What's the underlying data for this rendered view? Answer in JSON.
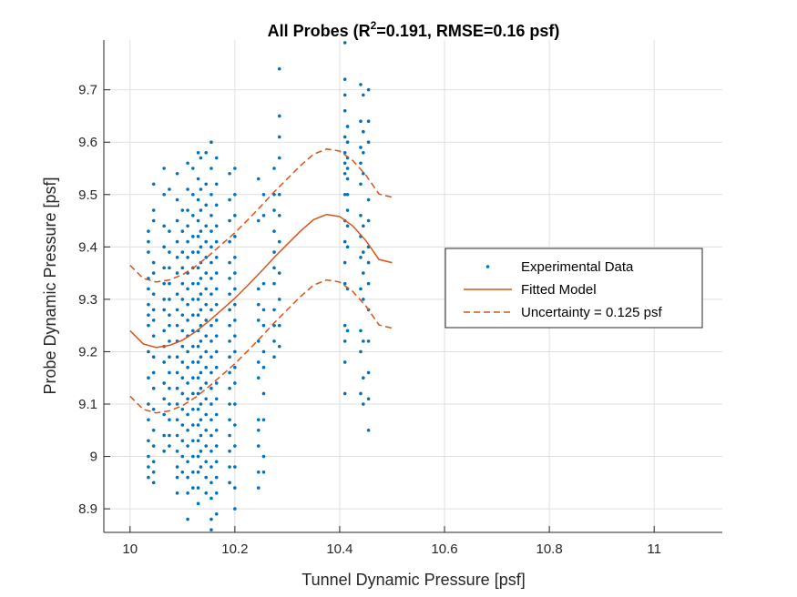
{
  "chart_data": {
    "type": "scatter",
    "title": {
      "prefix": "All Probes (R",
      "superscript": "2",
      "suffix": "=0.191, RMSE=0.16 psf)"
    },
    "xlabel": "Tunnel Dynamic Pressure [psf]",
    "ylabel": "Probe Dynamic Pressure [psf]",
    "xlim": [
      9.95,
      11.13
    ],
    "ylim": [
      8.855,
      9.795
    ],
    "xticks": [
      10,
      10.2,
      10.4,
      10.6,
      10.8,
      11
    ],
    "xtick_labels": [
      "10",
      "10.2",
      "10.4",
      "10.6",
      "10.8",
      "11"
    ],
    "yticks": [
      8.9,
      9,
      9.1,
      9.2,
      9.3,
      9.4,
      9.5,
      9.6,
      9.7
    ],
    "ytick_labels": [
      "8.9",
      "9",
      "9.1",
      "9.2",
      "9.3",
      "9.4",
      "9.5",
      "9.6",
      "9.7"
    ],
    "grid": true,
    "legend_position": "right",
    "colors": {
      "data": "#0072bd",
      "model": "#d95319",
      "axis": "#262626",
      "grid": "#dfdfdf"
    },
    "legend": [
      {
        "label": "Experimental Data",
        "style": "dot"
      },
      {
        "label": "Fitted Model",
        "style": "solid"
      },
      {
        "label": "Uncertainty = 0.125 psf",
        "style": "dashed"
      }
    ],
    "fitted_model": {
      "x": [
        10.0,
        10.025,
        10.05,
        10.075,
        10.1,
        10.125,
        10.15,
        10.175,
        10.2,
        10.225,
        10.25,
        10.275,
        10.3,
        10.325,
        10.35,
        10.375,
        10.4,
        10.425,
        10.45,
        10.475,
        10.5
      ],
      "y": [
        9.24,
        9.215,
        9.208,
        9.212,
        9.222,
        9.238,
        9.258,
        9.28,
        9.302,
        9.327,
        9.353,
        9.38,
        9.405,
        9.43,
        9.452,
        9.462,
        9.458,
        9.44,
        9.412,
        9.376,
        9.37
      ],
      "uncertainty": 0.125
    },
    "experimental_data": {
      "clusters": [
        {
          "x": 10.035,
          "y": [
            9.43,
            9.41,
            9.39,
            9.34,
            9.32,
            9.29,
            9.27,
            9.25,
            9.2,
            9.15,
            9.1,
            9.07,
            9.03,
            9.0,
            8.98,
            8.96
          ]
        },
        {
          "x": 10.045,
          "y": [
            9.52,
            9.47,
            9.45,
            9.37,
            9.35,
            9.31,
            9.28,
            9.26,
            9.23,
            9.19,
            9.16,
            9.13,
            9.09,
            9.05,
            9.02,
            8.99,
            8.97,
            8.95
          ]
        },
        {
          "x": 10.065,
          "y": [
            9.55,
            9.5,
            9.44,
            9.4,
            9.36,
            9.33,
            9.3,
            9.28,
            9.24,
            9.21,
            9.18,
            9.14,
            9.11,
            9.08,
            9.04,
            9.01
          ]
        },
        {
          "x": 10.075,
          "y": [
            9.51,
            9.43,
            9.39,
            9.36,
            9.33,
            9.3,
            9.27,
            9.25,
            9.22,
            9.19,
            9.16,
            9.13,
            9.1,
            9.07,
            9.04,
            9.02
          ]
        },
        {
          "x": 10.09,
          "y": [
            9.54,
            9.49,
            9.45,
            9.41,
            9.38,
            9.35,
            9.31,
            9.28,
            9.25,
            9.22,
            9.19,
            9.16,
            9.13,
            9.1,
            9.07,
            9.04,
            9.01,
            8.98,
            8.96,
            8.93
          ]
        },
        {
          "x": 10.1,
          "y": [
            9.47,
            9.43,
            9.39,
            9.36,
            9.33,
            9.3,
            9.27,
            9.24,
            9.21,
            9.18,
            9.15,
            9.12,
            9.09,
            9.06,
            9.03,
            9.0,
            8.97
          ]
        },
        {
          "x": 10.11,
          "y": [
            9.56,
            9.51,
            9.47,
            9.44,
            9.41,
            9.38,
            9.35,
            9.32,
            9.29,
            9.26,
            9.23,
            9.2,
            9.17,
            9.14,
            9.11,
            9.08,
            9.05,
            9.02,
            8.99,
            8.96,
            8.93,
            8.88
          ]
        },
        {
          "x": 10.12,
          "y": [
            9.55,
            9.5,
            9.46,
            9.42,
            9.39,
            9.36,
            9.33,
            9.3,
            9.27,
            9.24,
            9.21,
            9.18,
            9.15,
            9.12,
            9.09,
            9.06,
            9.03,
            9.0,
            8.97,
            8.94
          ]
        },
        {
          "x": 10.13,
          "y": [
            9.58,
            9.53,
            9.49,
            9.45,
            9.42,
            9.39,
            9.36,
            9.33,
            9.3,
            9.27,
            9.24,
            9.21,
            9.18,
            9.15,
            9.12,
            9.09,
            9.06,
            9.03,
            9.0,
            8.97,
            8.94,
            8.91
          ]
        },
        {
          "x": 10.135,
          "y": [
            9.57,
            9.51,
            9.47,
            9.43,
            9.4,
            9.37,
            9.34,
            9.31,
            9.28,
            9.25,
            9.22,
            9.19,
            9.16,
            9.13,
            9.1,
            9.07,
            9.04,
            9.01,
            8.98
          ]
        },
        {
          "x": 10.145,
          "y": [
            9.58,
            9.52,
            9.48,
            9.44,
            9.41,
            9.38,
            9.35,
            9.32,
            9.29,
            9.26,
            9.23,
            9.2,
            9.17,
            9.14,
            9.11,
            9.08,
            9.05,
            9.02,
            8.99,
            8.96,
            8.93
          ]
        },
        {
          "x": 10.155,
          "y": [
            9.6,
            9.55,
            9.5,
            9.46,
            9.43,
            9.4,
            9.37,
            9.34,
            9.31,
            9.28,
            9.25,
            9.22,
            9.19,
            9.16,
            9.13,
            9.1,
            9.07,
            9.04,
            9.01,
            8.98,
            8.95,
            8.92,
            8.88,
            8.86
          ]
        },
        {
          "x": 10.165,
          "y": [
            9.57,
            9.52,
            9.48,
            9.44,
            9.41,
            9.38,
            9.35,
            9.32,
            9.29,
            9.26,
            9.23,
            9.2,
            9.17,
            9.14,
            9.11,
            9.08,
            9.05,
            9.02,
            8.99,
            8.96,
            8.93,
            8.89
          ]
        },
        {
          "x": 10.19,
          "y": [
            9.54,
            9.49,
            9.45,
            9.41,
            9.37,
            9.34,
            9.31,
            9.28,
            9.25,
            9.22,
            9.19,
            9.16,
            9.13,
            9.1,
            9.07,
            9.04,
            9.01,
            8.98,
            8.95
          ]
        },
        {
          "x": 10.2,
          "y": [
            9.55,
            9.5,
            9.46,
            9.42,
            9.38,
            9.35,
            9.32,
            9.29,
            9.26,
            9.23,
            9.2,
            9.17,
            9.14,
            9.1,
            9.06,
            9.02,
            8.98,
            8.94,
            8.9
          ]
        },
        {
          "x": 10.245,
          "y": [
            9.53,
            9.45,
            9.32,
            9.29,
            9.26,
            9.22,
            9.18,
            9.15,
            9.07,
            9.05,
            9.02,
            8.97,
            8.94
          ]
        },
        {
          "x": 10.255,
          "y": [
            9.5,
            9.46,
            9.33,
            9.28,
            9.25,
            9.2,
            9.17,
            9.12,
            9.07,
            9.0,
            8.97
          ]
        },
        {
          "x": 10.275,
          "y": [
            9.55,
            9.5,
            9.47,
            9.43,
            9.39,
            9.36,
            9.33,
            9.28,
            9.25,
            9.22,
            9.19
          ]
        },
        {
          "x": 10.285,
          "y": [
            9.74,
            9.65,
            9.61,
            9.57,
            9.5,
            9.46,
            9.41,
            9.35,
            9.3,
            9.25,
            9.21
          ]
        },
        {
          "x": 10.41,
          "y": [
            9.79,
            9.72,
            9.69,
            9.66,
            9.61,
            9.58,
            9.56,
            9.54,
            9.5,
            9.45,
            9.41,
            9.37,
            9.33,
            9.25,
            9.22,
            9.18,
            9.12
          ]
        },
        {
          "x": 10.415,
          "y": [
            9.63,
            9.6,
            9.57,
            9.55,
            9.53,
            9.5,
            9.47,
            9.44,
            9.4,
            9.32,
            9.24
          ]
        },
        {
          "x": 10.44,
          "y": [
            9.71,
            9.64,
            9.59,
            9.56,
            9.52,
            9.46,
            9.42,
            9.38,
            9.32,
            9.24,
            9.2,
            9.12
          ]
        },
        {
          "x": 10.445,
          "y": [
            9.69,
            9.62,
            9.58,
            9.54,
            9.44,
            9.39,
            9.35,
            9.3,
            9.22,
            9.15,
            9.1
          ]
        },
        {
          "x": 10.455,
          "y": [
            9.7,
            9.64,
            9.6,
            9.49,
            9.45,
            9.4,
            9.37,
            9.33,
            9.28,
            9.22,
            9.16,
            9.11,
            9.05
          ]
        }
      ]
    }
  }
}
